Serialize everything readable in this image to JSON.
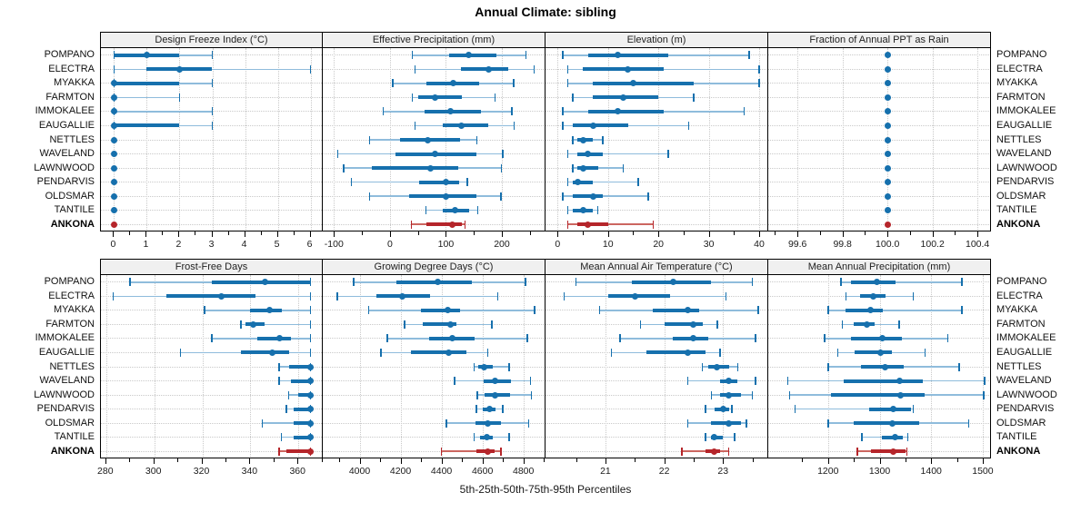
{
  "title": "Annual Climate: sibling",
  "caption": "5th-25th-50th-75th-95th Percentiles",
  "stations": [
    "POMPANO",
    "ELECTRA",
    "MYAKKA",
    "FARMTON",
    "IMMOKALEE",
    "EAUGALLIE",
    "NETTLES",
    "WAVELAND",
    "LAWNWOOD",
    "PENDARVIS",
    "OLDSMAR",
    "TANTILE",
    "ANKONA"
  ],
  "highlight_station": "ANKONA",
  "colors": {
    "series": "#1670ad",
    "series_light": "#8fbcdc",
    "highlight": "#b5252a",
    "highlight_light": "#cc6660",
    "grid": "#c9c9c9",
    "header_bg": "#f0f0f0",
    "border": "#000000"
  },
  "chart_data": [
    {
      "type": "dot-whisker",
      "title": "Design Freeze Index (°C)",
      "row": 0,
      "col": 0,
      "percentiles": [
        5,
        25,
        50,
        75,
        95
      ],
      "xlim": [
        -0.4,
        6.4
      ],
      "tick_values": [
        0,
        1,
        2,
        3,
        4,
        5,
        6
      ],
      "tick_labels": [
        "0",
        "1",
        "2",
        "3",
        "4",
        "5",
        "6"
      ],
      "values": [
        [
          0,
          0,
          1,
          2,
          3
        ],
        [
          0,
          1,
          2,
          3,
          6
        ],
        [
          0,
          0,
          0,
          2,
          3
        ],
        [
          0,
          0,
          0,
          0,
          2
        ],
        [
          0,
          0,
          0,
          0,
          3
        ],
        [
          0,
          0,
          0,
          2,
          3
        ],
        [
          0,
          0,
          0,
          0,
          0
        ],
        [
          0,
          0,
          0,
          0,
          0
        ],
        [
          0,
          0,
          0,
          0,
          0
        ],
        [
          0,
          0,
          0,
          0,
          0
        ],
        [
          0,
          0,
          0,
          0,
          0
        ],
        [
          0,
          0,
          0,
          0,
          0
        ],
        [
          0,
          0,
          0,
          0,
          0
        ]
      ]
    },
    {
      "type": "dot-whisker",
      "title": "Effective Precipitation (mm)",
      "row": 0,
      "col": 1,
      "percentiles": [
        5,
        25,
        50,
        75,
        95
      ],
      "xlim": [
        -120,
        278
      ],
      "tick_values": [
        -100,
        0,
        100,
        200
      ],
      "tick_labels": [
        "-100",
        "0",
        "100",
        "200"
      ],
      "values": [
        [
          40,
          105,
          140,
          190,
          243
        ],
        [
          45,
          127,
          176,
          211,
          258
        ],
        [
          5,
          65,
          113,
          160,
          221
        ],
        [
          40,
          50,
          80,
          128,
          188
        ],
        [
          -12,
          62,
          108,
          163,
          218
        ],
        [
          45,
          95,
          128,
          175,
          222
        ],
        [
          -36,
          18,
          68,
          125,
          155
        ],
        [
          -93,
          10,
          80,
          155,
          202
        ],
        [
          -83,
          -33,
          73,
          122,
          199
        ],
        [
          -69,
          53,
          100,
          124,
          138
        ],
        [
          -36,
          35,
          100,
          155,
          198
        ],
        [
          64,
          94,
          116,
          142,
          157
        ],
        [
          38,
          66,
          112,
          128,
          134
        ]
      ]
    },
    {
      "type": "dot-whisker",
      "title": "Elevation (m)",
      "row": 0,
      "col": 2,
      "percentiles": [
        5,
        25,
        50,
        75,
        95
      ],
      "xlim": [
        -2.4,
        41.8
      ],
      "tick_values": [
        0,
        10,
        20,
        30,
        40
      ],
      "tick_labels": [
        "0",
        "10",
        "20",
        "30",
        "40"
      ],
      "values": [
        [
          1,
          6,
          12,
          22,
          38
        ],
        [
          2,
          5,
          14,
          21,
          40
        ],
        [
          2,
          7,
          15,
          27,
          40
        ],
        [
          3,
          7,
          13,
          20,
          27
        ],
        [
          1,
          6,
          12,
          21,
          37
        ],
        [
          1,
          3,
          7,
          14,
          26
        ],
        [
          3,
          4,
          5,
          7,
          9
        ],
        [
          2,
          4,
          6,
          9,
          22
        ],
        [
          3,
          4,
          5,
          8,
          13
        ],
        [
          2,
          3,
          4,
          7,
          16
        ],
        [
          1,
          3,
          7,
          9,
          18
        ],
        [
          2,
          3,
          5,
          7,
          8
        ],
        [
          2,
          4,
          6,
          10,
          19
        ]
      ]
    },
    {
      "type": "dot-whisker",
      "title": "Fraction of Annual PPT as Rain",
      "row": 0,
      "col": 3,
      "percentiles": [
        5,
        25,
        50,
        75,
        95
      ],
      "xlim": [
        99.47,
        100.46
      ],
      "tick_values": [
        99.6,
        99.8,
        100.0,
        100.2,
        100.4
      ],
      "tick_labels": [
        "99.6",
        "99.8",
        "100.0",
        "100.2",
        "100.4"
      ],
      "values": [
        [
          100,
          100,
          100,
          100,
          100
        ],
        [
          100,
          100,
          100,
          100,
          100
        ],
        [
          100,
          100,
          100,
          100,
          100
        ],
        [
          100,
          100,
          100,
          100,
          100
        ],
        [
          100,
          100,
          100,
          100,
          100
        ],
        [
          100,
          100,
          100,
          100,
          100
        ],
        [
          100,
          100,
          100,
          100,
          100
        ],
        [
          100,
          100,
          100,
          100,
          100
        ],
        [
          100,
          100,
          100,
          100,
          100
        ],
        [
          100,
          100,
          100,
          100,
          100
        ],
        [
          100,
          100,
          100,
          100,
          100
        ],
        [
          100,
          100,
          100,
          100,
          100
        ],
        [
          100,
          100,
          100,
          100,
          100
        ]
      ]
    },
    {
      "type": "dot-whisker",
      "title": "Frost-Free Days",
      "row": 1,
      "col": 0,
      "percentiles": [
        5,
        25,
        50,
        75,
        95
      ],
      "xlim": [
        277.8,
        370.5
      ],
      "tick_values": [
        280,
        300,
        320,
        340,
        360
      ],
      "tick_labels": [
        "280",
        "300",
        "320",
        "340",
        "360"
      ],
      "values": [
        [
          290,
          324,
          346,
          365,
          365
        ],
        [
          283,
          305,
          328,
          342,
          365
        ],
        [
          321,
          340,
          348,
          353,
          365
        ],
        [
          336,
          338,
          341,
          346,
          365
        ],
        [
          324,
          343,
          352,
          357,
          365
        ],
        [
          311,
          336,
          349,
          356,
          365
        ],
        [
          352,
          356,
          365,
          365,
          365
        ],
        [
          352,
          357,
          365,
          365,
          365
        ],
        [
          356,
          360,
          365,
          365,
          365
        ],
        [
          355,
          358,
          365,
          365,
          365
        ],
        [
          345,
          358,
          365,
          365,
          365
        ],
        [
          353,
          358,
          365,
          365,
          365
        ],
        [
          352,
          355,
          365,
          365,
          365
        ]
      ]
    },
    {
      "type": "dot-whisker",
      "title": "Growing Degree Days (°C)",
      "row": 1,
      "col": 1,
      "percentiles": [
        5,
        25,
        50,
        75,
        95
      ],
      "xlim": [
        3820,
        4908
      ],
      "tick_values": [
        4000,
        4200,
        4400,
        4600,
        4800
      ],
      "tick_labels": [
        "4000",
        "4200",
        "4400",
        "4600",
        "4800"
      ],
      "values": [
        [
          3970,
          4180,
          4380,
          4550,
          4810
        ],
        [
          3890,
          4080,
          4210,
          4345,
          4675
        ],
        [
          4045,
          4300,
          4430,
          4490,
          4855
        ],
        [
          4220,
          4310,
          4445,
          4475,
          4645
        ],
        [
          4135,
          4340,
          4455,
          4560,
          4820
        ],
        [
          4105,
          4250,
          4435,
          4520,
          4625
        ],
        [
          4560,
          4580,
          4610,
          4650,
          4730
        ],
        [
          4465,
          4605,
          4660,
          4740,
          4835
        ],
        [
          4575,
          4610,
          4660,
          4735,
          4840
        ],
        [
          4570,
          4600,
          4635,
          4665,
          4700
        ],
        [
          4425,
          4565,
          4625,
          4690,
          4825
        ],
        [
          4560,
          4590,
          4620,
          4650,
          4730
        ],
        [
          4400,
          4570,
          4625,
          4660,
          4690
        ]
      ]
    },
    {
      "type": "dot-whisker",
      "title": "Mean Annual Air Temperature (°C)",
      "row": 1,
      "col": 2,
      "percentiles": [
        5,
        25,
        50,
        75,
        95
      ],
      "xlim": [
        19.98,
        23.77
      ],
      "tick_values": [
        21,
        22,
        23
      ],
      "tick_labels": [
        "21",
        "22",
        "23"
      ],
      "values": [
        [
          20.5,
          21.45,
          22.15,
          22.8,
          23.5
        ],
        [
          20.3,
          21.05,
          21.5,
          22.1,
          23.05
        ],
        [
          20.9,
          21.8,
          22.4,
          22.6,
          23.6
        ],
        [
          21.6,
          22.0,
          22.5,
          22.65,
          22.9
        ],
        [
          21.25,
          22.15,
          22.5,
          22.75,
          23.55
        ],
        [
          21.1,
          21.7,
          22.4,
          22.7,
          22.95
        ],
        [
          22.65,
          22.75,
          22.9,
          23.1,
          23.25
        ],
        [
          22.4,
          22.95,
          23.1,
          23.25,
          23.55
        ],
        [
          22.8,
          22.95,
          23.1,
          23.3,
          23.5
        ],
        [
          22.7,
          22.85,
          23.0,
          23.1,
          23.15
        ],
        [
          22.4,
          22.8,
          23.1,
          23.3,
          23.4
        ],
        [
          22.7,
          22.8,
          22.85,
          23.0,
          23.2
        ],
        [
          22.3,
          22.7,
          22.85,
          22.95,
          23.1
        ]
      ]
    },
    {
      "type": "dot-whisker",
      "title": "Mean Annual Precipitation (mm)",
      "row": 1,
      "col": 3,
      "percentiles": [
        5,
        25,
        50,
        75,
        95
      ],
      "xlim": [
        1084,
        1516
      ],
      "tick_values": [
        1200,
        1300,
        1400,
        1500
      ],
      "tick_labels": [
        "1200",
        "1300",
        "1400",
        "1500"
      ],
      "values": [
        [
          1225,
          1245,
          1295,
          1330,
          1460
        ],
        [
          1235,
          1262,
          1288,
          1312,
          1365
        ],
        [
          1200,
          1234,
          1283,
          1307,
          1460
        ],
        [
          1228,
          1250,
          1275,
          1290,
          1338
        ],
        [
          1193,
          1244,
          1306,
          1344,
          1432
        ],
        [
          1219,
          1252,
          1301,
          1324,
          1388
        ],
        [
          1200,
          1263,
          1310,
          1347,
          1454
        ],
        [
          1122,
          1230,
          1338,
          1384,
          1504
        ],
        [
          1125,
          1205,
          1340,
          1387,
          1502
        ],
        [
          1136,
          1280,
          1327,
          1360,
          1365
        ],
        [
          1200,
          1250,
          1325,
          1377,
          1473
        ],
        [
          1266,
          1305,
          1330,
          1345,
          1355
        ],
        [
          1257,
          1284,
          1327,
          1350,
          1353
        ]
      ]
    }
  ]
}
